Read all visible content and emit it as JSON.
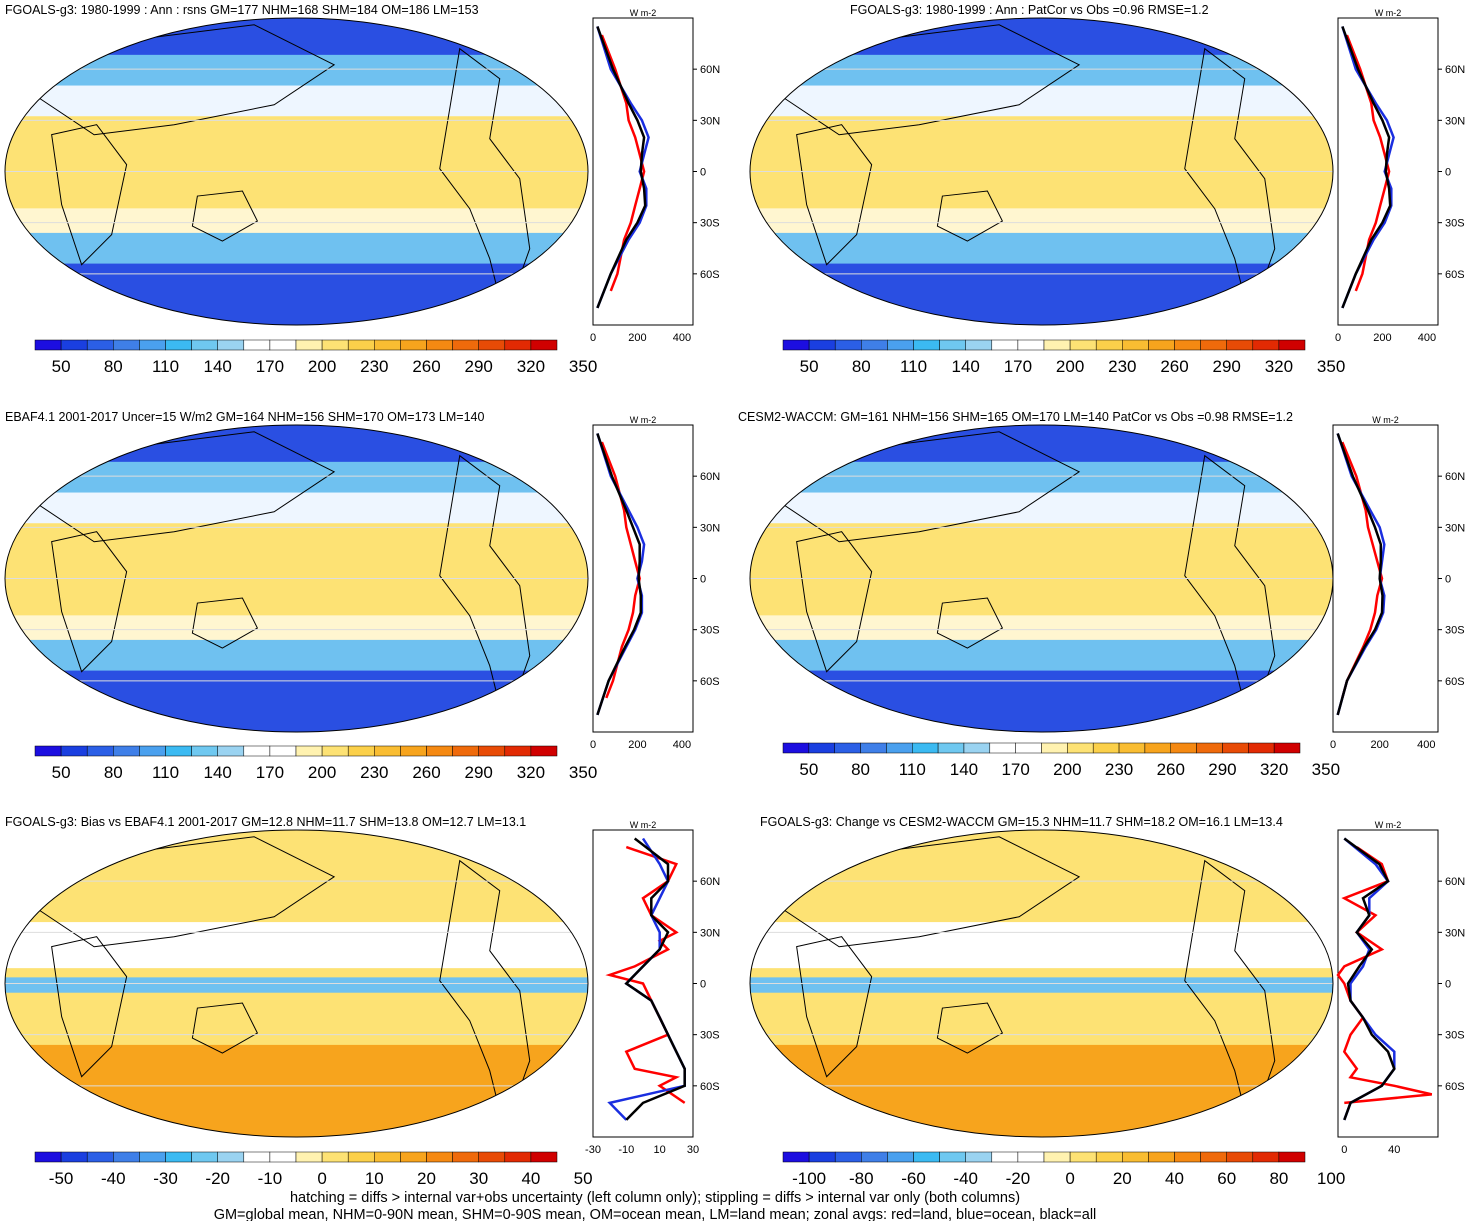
{
  "colors": {
    "ocean_blue": "#1a3fe0",
    "zonal_land": "#ff0000",
    "zonal_ocean": "#1a2ee0",
    "zonal_all": "#000000",
    "warm_yellow": "#fde274",
    "warm_orange": "#f7a41d",
    "neutral": "#ffffff"
  },
  "chart_data": [
    {
      "type": "heatmap",
      "title": "FGOALS-g3: 1980-1999 : Ann : rsns GM=177 NHM=168 SHM=184 OM=186 LM=153",
      "projection": "Robinson",
      "colorbar": {
        "levels": [
          50,
          80,
          110,
          140,
          170,
          200,
          230,
          260,
          290,
          320,
          350
        ]
      },
      "zonal_avg": {
        "type": "line",
        "unit": "W m-2",
        "xticks": [
          "0",
          "200",
          "400"
        ],
        "xlim": [
          0,
          450
        ],
        "yticks": [
          "60N",
          "30N",
          "0",
          "30S",
          "60S"
        ],
        "series": [
          {
            "name": "land",
            "lat": [
              80,
              60,
              40,
              30,
              20,
              10,
              0,
              -10,
              -20,
              -30,
              -40,
              -60,
              -70
            ],
            "values": [
              40,
              100,
              150,
              160,
              190,
              210,
              230,
              210,
              190,
              170,
              140,
              110,
              80
            ]
          },
          {
            "name": "ocean",
            "lat": [
              85,
              60,
              40,
              30,
              20,
              10,
              0,
              -10,
              -20,
              -30,
              -40,
              -60,
              -80
            ],
            "values": [
              20,
              80,
              170,
              220,
              250,
              230,
              210,
              240,
              240,
              210,
              160,
              80,
              20
            ]
          },
          {
            "name": "all",
            "lat": [
              85,
              60,
              40,
              30,
              20,
              10,
              0,
              -10,
              -20,
              -30,
              -40,
              -60,
              -80
            ],
            "values": [
              20,
              90,
              160,
              200,
              230,
              220,
              215,
              230,
              235,
              200,
              150,
              80,
              20
            ]
          }
        ]
      }
    },
    {
      "type": "heatmap",
      "title": "FGOALS-g3: 1980-1999 : Ann : PatCor vs Obs =0.96 RMSE=1.2",
      "projection": "Robinson",
      "colorbar": {
        "levels": [
          50,
          80,
          110,
          140,
          170,
          200,
          230,
          260,
          290,
          320,
          350
        ]
      },
      "zonal_avg": {
        "type": "line",
        "unit": "W m-2",
        "xticks": [
          "0",
          "200",
          "400"
        ],
        "xlim": [
          0,
          450
        ],
        "yticks": [
          "60N",
          "30N",
          "0",
          "30S",
          "60S"
        ],
        "series": [
          {
            "name": "land",
            "lat": [
              80,
              60,
              40,
              30,
              20,
              10,
              0,
              -10,
              -20,
              -30,
              -40,
              -60,
              -70
            ],
            "values": [
              40,
              100,
              150,
              160,
              190,
              210,
              230,
              210,
              190,
              170,
              140,
              110,
              80
            ]
          },
          {
            "name": "ocean",
            "lat": [
              85,
              60,
              40,
              30,
              20,
              10,
              0,
              -10,
              -20,
              -30,
              -40,
              -60,
              -80
            ],
            "values": [
              20,
              80,
              170,
              220,
              250,
              230,
              210,
              240,
              240,
              210,
              160,
              80,
              20
            ]
          },
          {
            "name": "all",
            "lat": [
              85,
              60,
              40,
              30,
              20,
              10,
              0,
              -10,
              -20,
              -30,
              -40,
              -60,
              -80
            ],
            "values": [
              20,
              90,
              160,
              200,
              230,
              220,
              215,
              230,
              235,
              200,
              150,
              80,
              20
            ]
          }
        ]
      }
    },
    {
      "type": "heatmap",
      "title": "EBAF4.1 2001-2017 Uncer=15 W/m2 GM=164 NHM=156 SHM=170 OM=173 LM=140",
      "projection": "Robinson",
      "colorbar": {
        "levels": [
          50,
          80,
          110,
          140,
          170,
          200,
          230,
          260,
          290,
          320,
          350
        ]
      },
      "zonal_avg": {
        "type": "line",
        "unit": "W m-2",
        "xticks": [
          "0",
          "200",
          "400"
        ],
        "xlim": [
          0,
          450
        ],
        "yticks": [
          "60N",
          "30N",
          "0",
          "30S",
          "60S"
        ],
        "series": [
          {
            "name": "land",
            "lat": [
              80,
              60,
              40,
              30,
              20,
              10,
              0,
              -10,
              -20,
              -30,
              -40,
              -60,
              -70
            ],
            "values": [
              40,
              100,
              140,
              150,
              170,
              190,
              210,
              190,
              180,
              160,
              130,
              90,
              60
            ]
          },
          {
            "name": "ocean",
            "lat": [
              85,
              60,
              40,
              30,
              20,
              10,
              0,
              -10,
              -20,
              -30,
              -40,
              -60,
              -80
            ],
            "values": [
              20,
              80,
              160,
              200,
              230,
              220,
              200,
              220,
              220,
              190,
              150,
              70,
              20
            ]
          },
          {
            "name": "all",
            "lat": [
              85,
              60,
              40,
              30,
              20,
              10,
              0,
              -10,
              -20,
              -30,
              -40,
              -60,
              -80
            ],
            "values": [
              20,
              85,
              150,
              180,
              210,
              210,
              205,
              215,
              215,
              185,
              145,
              70,
              20
            ]
          }
        ]
      }
    },
    {
      "type": "heatmap",
      "title": "CESM2-WACCM: GM=161 NHM=156 SHM=165 OM=170 LM=140 PatCor vs Obs =0.98 RMSE=1.2",
      "projection": "Robinson",
      "colorbar": {
        "levels": [
          50,
          80,
          110,
          140,
          170,
          200,
          230,
          260,
          290,
          320,
          350
        ]
      },
      "zonal_avg": {
        "type": "line",
        "unit": "W m-2",
        "xticks": [
          "0",
          "200",
          "400"
        ],
        "xlim": [
          0,
          450
        ],
        "yticks": [
          "60N",
          "30N",
          "0",
          "30S",
          "60S"
        ],
        "series": [
          {
            "name": "land",
            "lat": [
              80,
              60,
              40,
              30,
              20,
              10,
              0,
              -10,
              -20,
              -30,
              -40,
              -60,
              -70
            ],
            "values": [
              40,
              100,
              140,
              150,
              170,
              190,
              210,
              190,
              180,
              160,
              130,
              60,
              40
            ]
          },
          {
            "name": "ocean",
            "lat": [
              85,
              60,
              40,
              30,
              20,
              10,
              0,
              -10,
              -20,
              -30,
              -40,
              -60,
              -80
            ],
            "values": [
              20,
              80,
              160,
              200,
              220,
              210,
              200,
              220,
              215,
              185,
              140,
              60,
              20
            ]
          },
          {
            "name": "all",
            "lat": [
              85,
              60,
              40,
              30,
              20,
              10,
              0,
              -10,
              -20,
              -30,
              -40,
              -60,
              -80
            ],
            "values": [
              20,
              85,
              150,
              180,
              205,
              205,
              200,
              212,
              210,
              180,
              135,
              60,
              20
            ]
          }
        ]
      }
    },
    {
      "type": "heatmap",
      "title": "FGOALS-g3: Bias vs EBAF4.1 2001-2017 GM=12.8 NHM=11.7 SHM=13.8 OM=12.7 LM=13.1",
      "projection": "Robinson",
      "colorbar": {
        "levels": [
          -50,
          -40,
          -30,
          -20,
          -10,
          0,
          10,
          20,
          30,
          40,
          50
        ]
      },
      "zonal_avg": {
        "type": "line",
        "unit": "W m-2",
        "xticks": [
          "-30",
          "-10",
          "10",
          "30"
        ],
        "xlim": [
          -30,
          30
        ],
        "yticks": [
          "60N",
          "30N",
          "0",
          "30S",
          "60S"
        ],
        "series": [
          {
            "name": "land",
            "lat": [
              80,
              70,
              60,
              50,
              40,
              30,
              25,
              20,
              10,
              5,
              0,
              -10,
              -20,
              -30,
              -40,
              -50,
              -55,
              -60,
              -70
            ],
            "values": [
              -10,
              20,
              15,
              0,
              5,
              20,
              10,
              15,
              -5,
              -20,
              0,
              5,
              10,
              15,
              -10,
              -5,
              20,
              10,
              25
            ]
          },
          {
            "name": "ocean",
            "lat": [
              85,
              70,
              60,
              50,
              40,
              30,
              20,
              10,
              0,
              -10,
              -20,
              -30,
              -40,
              -50,
              -60,
              -70,
              -80
            ],
            "values": [
              0,
              10,
              15,
              10,
              5,
              10,
              10,
              0,
              -10,
              5,
              10,
              15,
              20,
              25,
              25,
              -20,
              -10
            ]
          },
          {
            "name": "all",
            "lat": [
              85,
              70,
              60,
              50,
              40,
              30,
              20,
              10,
              0,
              -10,
              -20,
              -30,
              -40,
              -50,
              -60,
              -70,
              -80
            ],
            "values": [
              -5,
              15,
              15,
              5,
              5,
              15,
              10,
              0,
              -10,
              5,
              10,
              15,
              20,
              25,
              25,
              0,
              -10
            ]
          }
        ]
      }
    },
    {
      "type": "heatmap",
      "title": "FGOALS-g3: Change vs CESM2-WACCM GM=15.3 NHM=11.7 SHM=18.2 OM=16.1 LM=13.4",
      "projection": "Robinson",
      "colorbar": {
        "levels": [
          -100,
          -80,
          -60,
          -40,
          -20,
          0,
          20,
          40,
          60,
          80,
          100
        ]
      },
      "zonal_avg": {
        "type": "line",
        "unit": "W m-2",
        "xticks": [
          "0",
          "40"
        ],
        "xlim": [
          -5,
          75
        ],
        "yticks": [
          "60N",
          "30N",
          "0",
          "30S",
          "60S"
        ],
        "series": [
          {
            "name": "land",
            "lat": [
              80,
              70,
              60,
              50,
              40,
              30,
              20,
              10,
              5,
              0,
              -10,
              -20,
              -30,
              -40,
              -50,
              -55,
              -60,
              -65,
              -70
            ],
            "values": [
              10,
              30,
              35,
              0,
              25,
              10,
              30,
              0,
              -5,
              0,
              5,
              15,
              5,
              0,
              10,
              5,
              40,
              70,
              0
            ]
          },
          {
            "name": "ocean",
            "lat": [
              85,
              70,
              60,
              50,
              40,
              30,
              20,
              10,
              0,
              -10,
              -20,
              -30,
              -40,
              -50,
              -60,
              -70,
              -80
            ],
            "values": [
              0,
              25,
              35,
              20,
              20,
              10,
              20,
              15,
              5,
              5,
              15,
              25,
              40,
              40,
              30,
              5,
              0
            ]
          },
          {
            "name": "all",
            "lat": [
              85,
              70,
              60,
              50,
              40,
              30,
              20,
              10,
              0,
              -10,
              -20,
              -30,
              -40,
              -50,
              -60,
              -70,
              -80
            ],
            "values": [
              0,
              28,
              35,
              15,
              20,
              10,
              22,
              12,
              3,
              5,
              15,
              22,
              35,
              40,
              30,
              5,
              0
            ]
          }
        ]
      }
    }
  ],
  "footer": {
    "line1": "hatching = diffs > internal var+obs uncertainty (left column only); stippling = diffs > internal var only (both columns)",
    "line2": "GM=global mean, NHM=0-90N mean, SHM=0-90S mean, OM=ocean mean, LM=land mean; zonal avgs: red=land, blue=ocean, black=all"
  }
}
